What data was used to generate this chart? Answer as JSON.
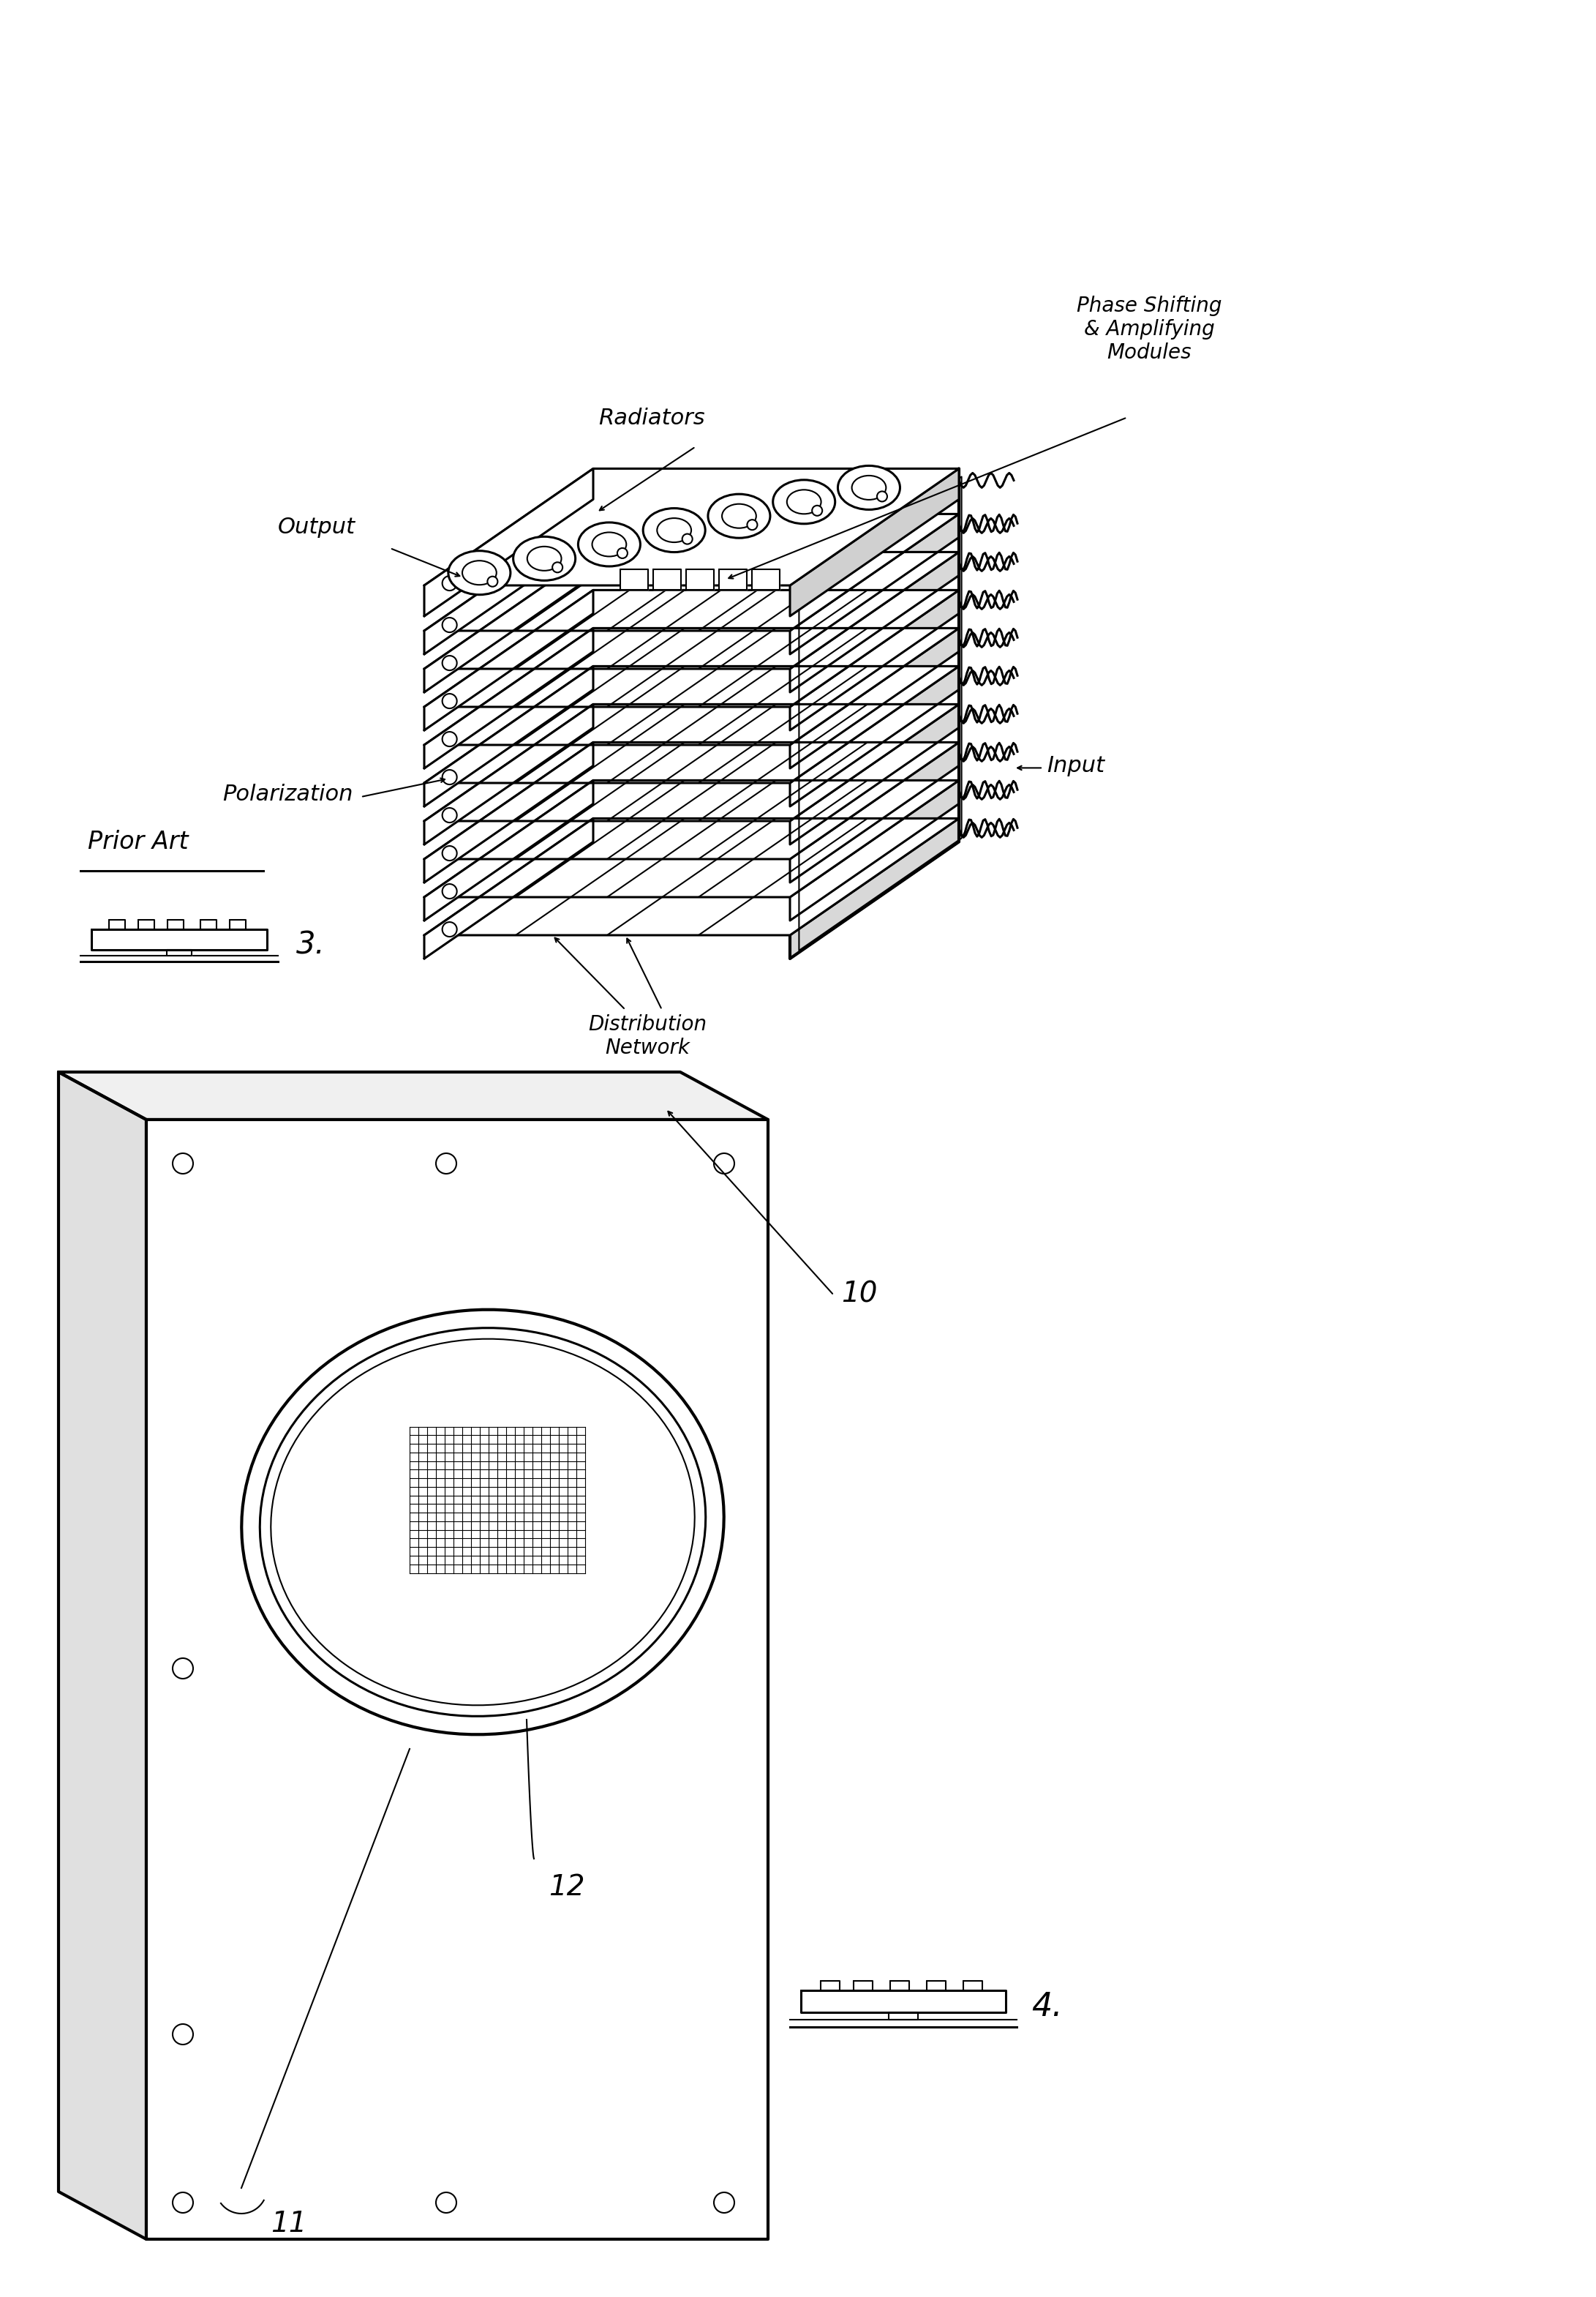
{
  "fig_width": 21.82,
  "fig_height": 31.39,
  "bg_color": "#ffffff",
  "line_color": "#000000",
  "fig3_labels": {
    "radiators": "Radiators",
    "output": "Output",
    "polarization": "Polarization",
    "phase_shifting": "Phase Shifting\n& Amplifying\nModules",
    "input": "Input",
    "distribution": "Distribution\nNetwork",
    "prior_art": "Prior Art",
    "fig_num": "3."
  },
  "fig4_labels": {
    "label_10": "10",
    "label_11": "11",
    "label_12": "12",
    "fig_num": "4."
  }
}
